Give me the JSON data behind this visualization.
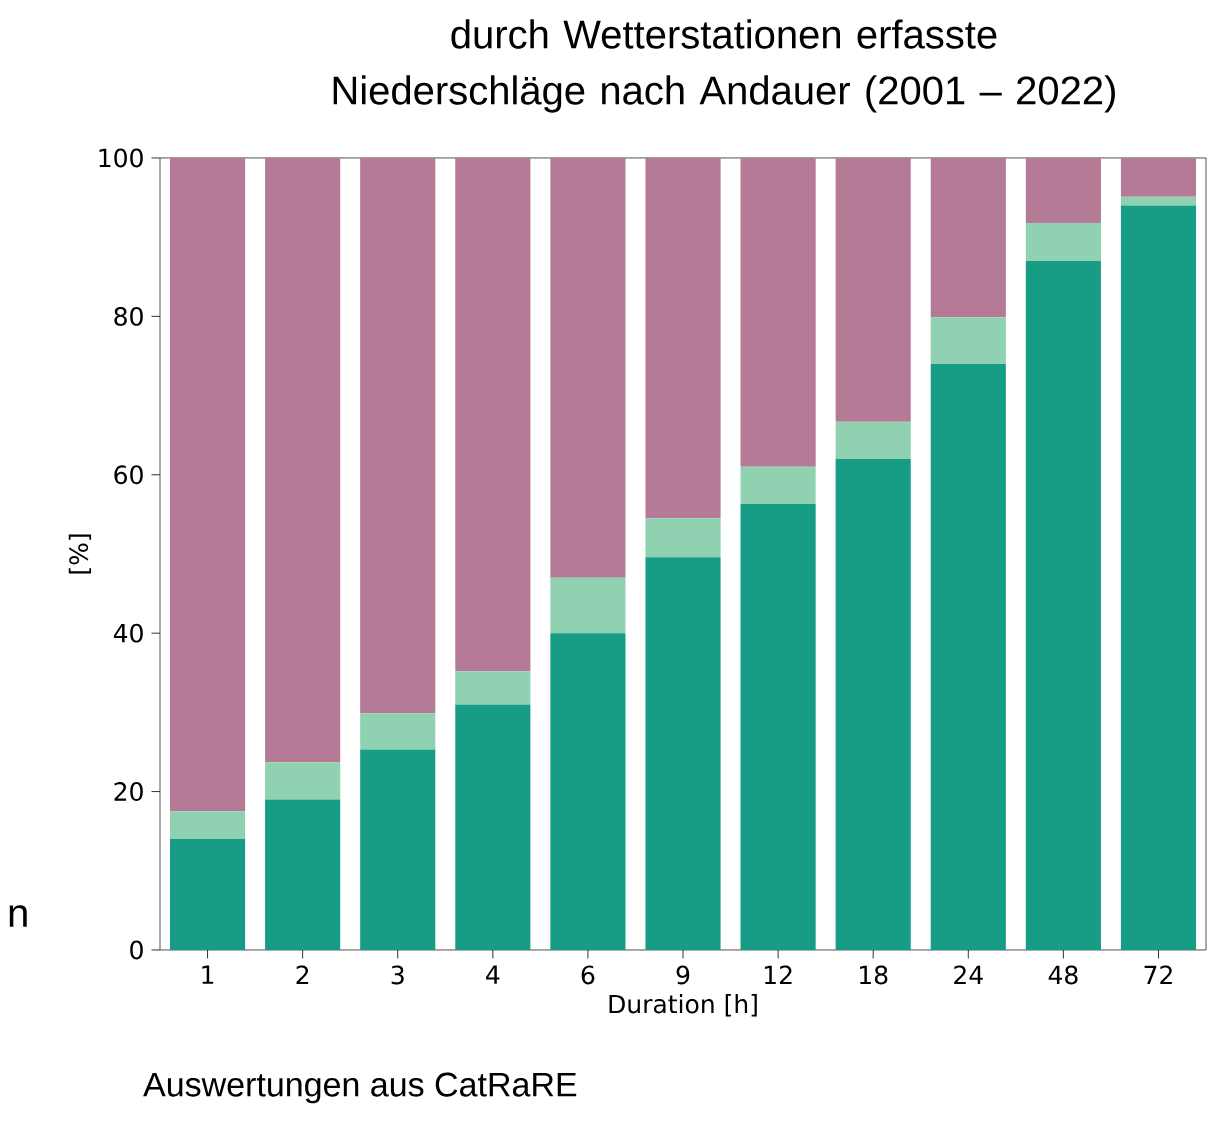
{
  "chart_data": {
    "type": "bar",
    "title": "durch Wetterstationen erfasste Niederschläge nach Andauer (2001 – 2022)",
    "xlabel": "Duration [h]",
    "ylabel": "[%]",
    "annotations": [
      "Auswertungen aus CatRaRE",
      "n"
    ],
    "categories": [
      "1",
      "2",
      "3",
      "4",
      "6",
      "9",
      "12",
      "18",
      "24",
      "48",
      "72"
    ],
    "stacked": true,
    "series": [
      {
        "color": "#179c86",
        "values": [
          14,
          19,
          25.3,
          31,
          40,
          49.6,
          56.3,
          62,
          74,
          87,
          94
        ]
      },
      {
        "color": "#8fd1b0",
        "values": [
          3.5,
          4.7,
          4.6,
          4.2,
          7,
          4.9,
          4.7,
          4.7,
          5.9,
          4.8,
          1.1
        ]
      },
      {
        "color": "#b47a96",
        "values": [
          82.5,
          76.3,
          70.1,
          64.8,
          53,
          45.5,
          39,
          33.3,
          20.1,
          8.2,
          4.9
        ]
      }
    ],
    "ylim": [
      0,
      100
    ],
    "yticks": [
      0,
      20,
      40,
      60,
      80,
      100
    ]
  }
}
